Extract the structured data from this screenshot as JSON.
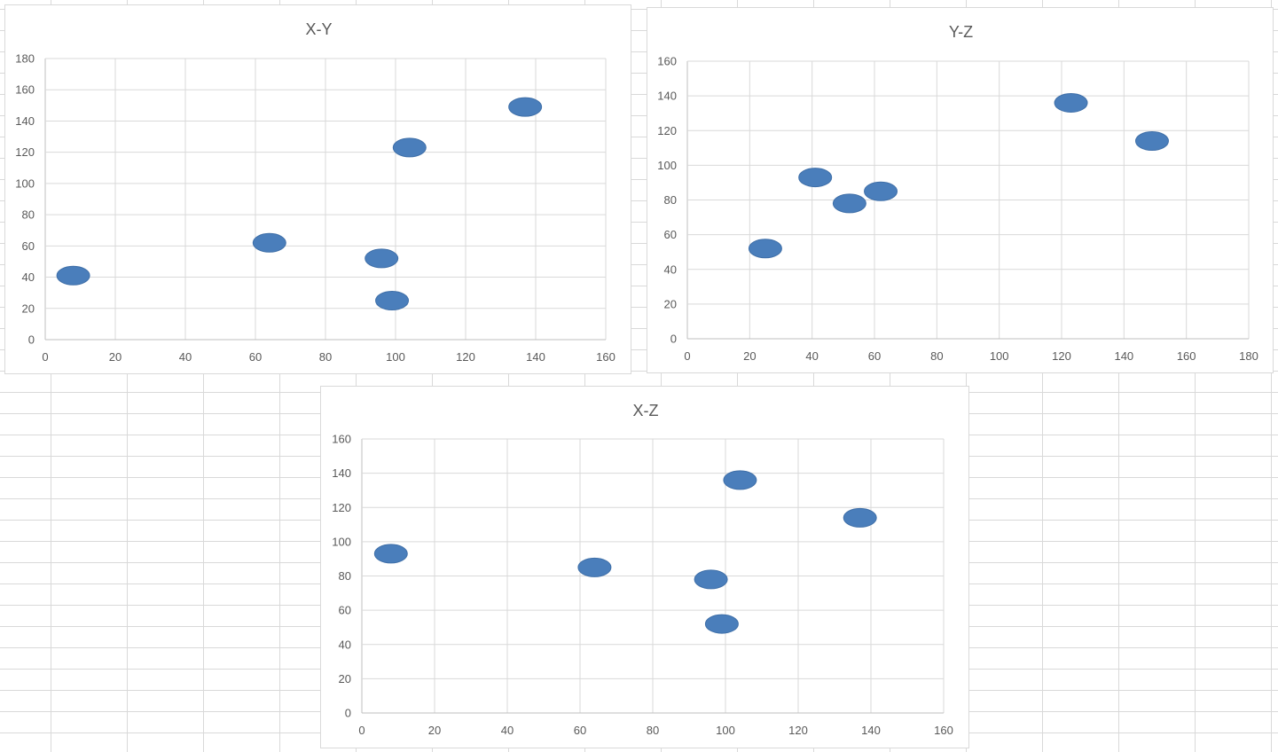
{
  "chart_data": [
    {
      "type": "scatter",
      "title": "X-Y",
      "xlabel": "",
      "ylabel": "",
      "xlim": [
        0,
        160
      ],
      "ylim": [
        0,
        180
      ],
      "xticks": [
        0,
        20,
        40,
        60,
        80,
        100,
        120,
        140,
        160
      ],
      "yticks": [
        0,
        20,
        40,
        60,
        80,
        100,
        120,
        140,
        160,
        180
      ],
      "grid": true,
      "legend": "none",
      "marker_color": "#4a7ebb",
      "points": [
        {
          "x": 8,
          "y": 41
        },
        {
          "x": 64,
          "y": 62
        },
        {
          "x": 96,
          "y": 52
        },
        {
          "x": 99,
          "y": 25
        },
        {
          "x": 104,
          "y": 123
        },
        {
          "x": 137,
          "y": 149
        }
      ]
    },
    {
      "type": "scatter",
      "title": "Y-Z",
      "xlabel": "",
      "ylabel": "",
      "xlim": [
        0,
        180
      ],
      "ylim": [
        0,
        160
      ],
      "xticks": [
        0,
        20,
        40,
        60,
        80,
        100,
        120,
        140,
        160,
        180
      ],
      "yticks": [
        0,
        20,
        40,
        60,
        80,
        100,
        120,
        140,
        160
      ],
      "grid": true,
      "legend": "none",
      "marker_color": "#4a7ebb",
      "points": [
        {
          "x": 25,
          "y": 52
        },
        {
          "x": 41,
          "y": 93
        },
        {
          "x": 52,
          "y": 78
        },
        {
          "x": 62,
          "y": 85
        },
        {
          "x": 123,
          "y": 136
        },
        {
          "x": 149,
          "y": 114
        }
      ]
    },
    {
      "type": "scatter",
      "title": "X-Z",
      "xlabel": "",
      "ylabel": "",
      "xlim": [
        0,
        160
      ],
      "ylim": [
        0,
        160
      ],
      "xticks": [
        0,
        20,
        40,
        60,
        80,
        100,
        120,
        140,
        160
      ],
      "yticks": [
        0,
        20,
        40,
        60,
        80,
        100,
        120,
        140,
        160
      ],
      "grid": true,
      "legend": "none",
      "marker_color": "#4a7ebb",
      "points": [
        {
          "x": 8,
          "y": 93
        },
        {
          "x": 64,
          "y": 85
        },
        {
          "x": 96,
          "y": 78
        },
        {
          "x": 99,
          "y": 52
        },
        {
          "x": 104,
          "y": 136
        },
        {
          "x": 137,
          "y": 114
        }
      ]
    }
  ]
}
